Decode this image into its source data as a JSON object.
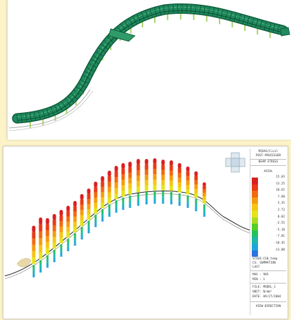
{
  "legend": {
    "header": [
      "MIDAS/Civil",
      "POST-PROCESSOR",
      "BEAM STRESS"
    ],
    "component": "AXIAL",
    "scale": [
      {
        "value": "15.03",
        "color": "#d91f1f"
      },
      {
        "value": "13.25",
        "color": "#e83a16"
      },
      {
        "value": "10.62",
        "color": "#f26a10"
      },
      {
        "value": "7.98",
        "color": "#f59b10"
      },
      {
        "value": "5.35",
        "color": "#f5c514"
      },
      {
        "value": "2.72",
        "color": "#e6e31a"
      },
      {
        "value": "0.02",
        "color": "#a8dc20"
      },
      {
        "value": "-2.55",
        "color": "#55cf25"
      },
      {
        "value": "-5.18",
        "color": "#22c25a"
      },
      {
        "value": "-7.81",
        "color": "#1db8a6"
      },
      {
        "value": "-10.45",
        "color": "#1ea6da"
      },
      {
        "value": "-13.08",
        "color": "#2a72e2"
      }
    ],
    "stage": [
      "STAGE:CS0_temp",
      "CS: SUMMATION",
      "LAST"
    ],
    "max": "MAX : 905",
    "min": "MIN : 1",
    "file": "FILE: MODEL_1",
    "unit": "UNIT: N/mm²",
    "date": "DATE: 09/27/2004",
    "view": "VIEW-DIRECTION"
  },
  "colors": {
    "background": "#fdf3c8",
    "deck": "#1f8a5e",
    "deck_dark": "#0f5c3b",
    "piers": "#a6d36a"
  }
}
